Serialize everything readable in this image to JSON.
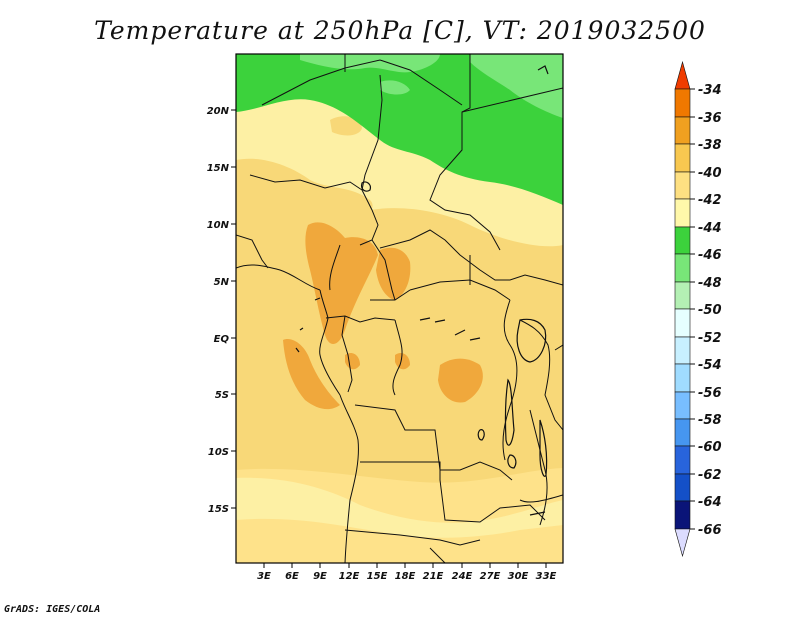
{
  "title": "Temperature at 250hPa [C], VT: 2019032500",
  "credit": "GrADS: IGES/COLA",
  "map": {
    "lat_labels": [
      "20N",
      "15N",
      "10N",
      "5N",
      "EQ",
      "5S",
      "10S",
      "15S"
    ],
    "lon_labels": [
      "3E",
      "6E",
      "9E",
      "12E",
      "15E",
      "18E",
      "21E",
      "24E",
      "27E",
      "30E",
      "33E"
    ]
  },
  "colorbar": {
    "levels": [
      "-34",
      "-36",
      "-38",
      "-40",
      "-42",
      "-44",
      "-46",
      "-48",
      "-50",
      "-52",
      "-54",
      "-56",
      "-58",
      "-60",
      "-62",
      "-64",
      "-66"
    ],
    "colors": [
      "#f03c00",
      "#f07800",
      "#f0a020",
      "#f8c850",
      "#fee082",
      "#fff8aa",
      "#3cd23c",
      "#78e678",
      "#b4f0b4",
      "#e6ffff",
      "#c8f0ff",
      "#a0dcff",
      "#78beff",
      "#4696f0",
      "#2864dc",
      "#1450c8",
      "#0a1478",
      "#dcdcff"
    ]
  }
}
